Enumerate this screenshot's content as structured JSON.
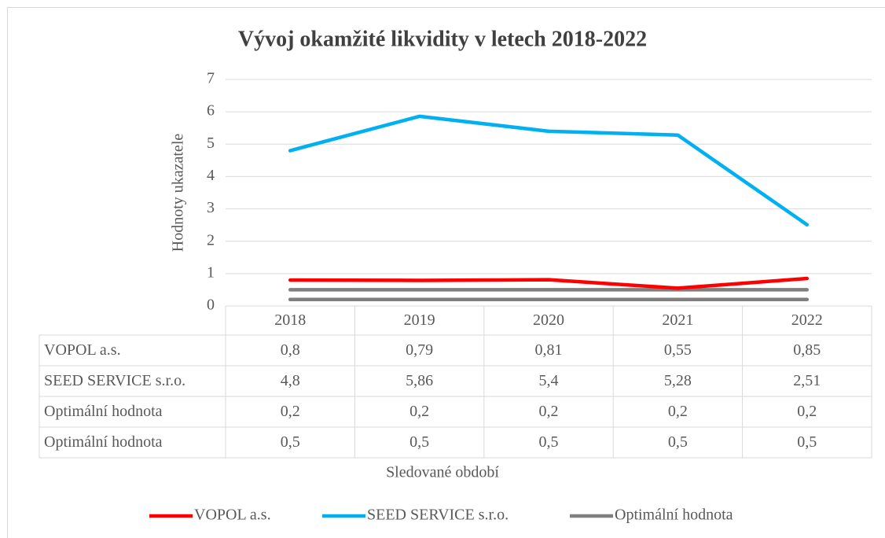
{
  "chart_data": {
    "type": "line",
    "title": "Vývoj okamžité likvidity v letech 2018-2022",
    "y_label": "Hodnoty ukazatele",
    "x_label": "Sledované období",
    "categories": [
      "2018",
      "2019",
      "2020",
      "2021",
      "2022"
    ],
    "series": [
      {
        "name": "VOPOL a.s.",
        "color": "#ff0000",
        "values": [
          0.8,
          0.79,
          0.81,
          0.55,
          0.85
        ],
        "value_labels": [
          "0,8",
          "0,79",
          "0,81",
          "0,55",
          "0,85"
        ]
      },
      {
        "name": "SEED SERVICE s.r.o.",
        "color": "#00b0f0",
        "values": [
          4.8,
          5.86,
          5.4,
          5.28,
          2.51
        ],
        "value_labels": [
          "4,8",
          "5,86",
          "5,4",
          "5,28",
          "2,51"
        ]
      },
      {
        "name": "Optimální hodnota",
        "color": "#7f7f7f",
        "values": [
          0.2,
          0.2,
          0.2,
          0.2,
          0.2
        ],
        "value_labels": [
          "0,2",
          "0,2",
          "0,2",
          "0,2",
          "0,2"
        ]
      },
      {
        "name": "Optimální hodnota",
        "color": "#7f7f7f",
        "values": [
          0.5,
          0.5,
          0.5,
          0.5,
          0.5
        ],
        "value_labels": [
          "0,5",
          "0,5",
          "0,5",
          "0,5",
          "0,5"
        ]
      }
    ],
    "ylim": [
      0,
      7
    ],
    "yticks": [
      0,
      1,
      2,
      3,
      4,
      5,
      6,
      7
    ],
    "grid": true,
    "legend": "bottom"
  }
}
